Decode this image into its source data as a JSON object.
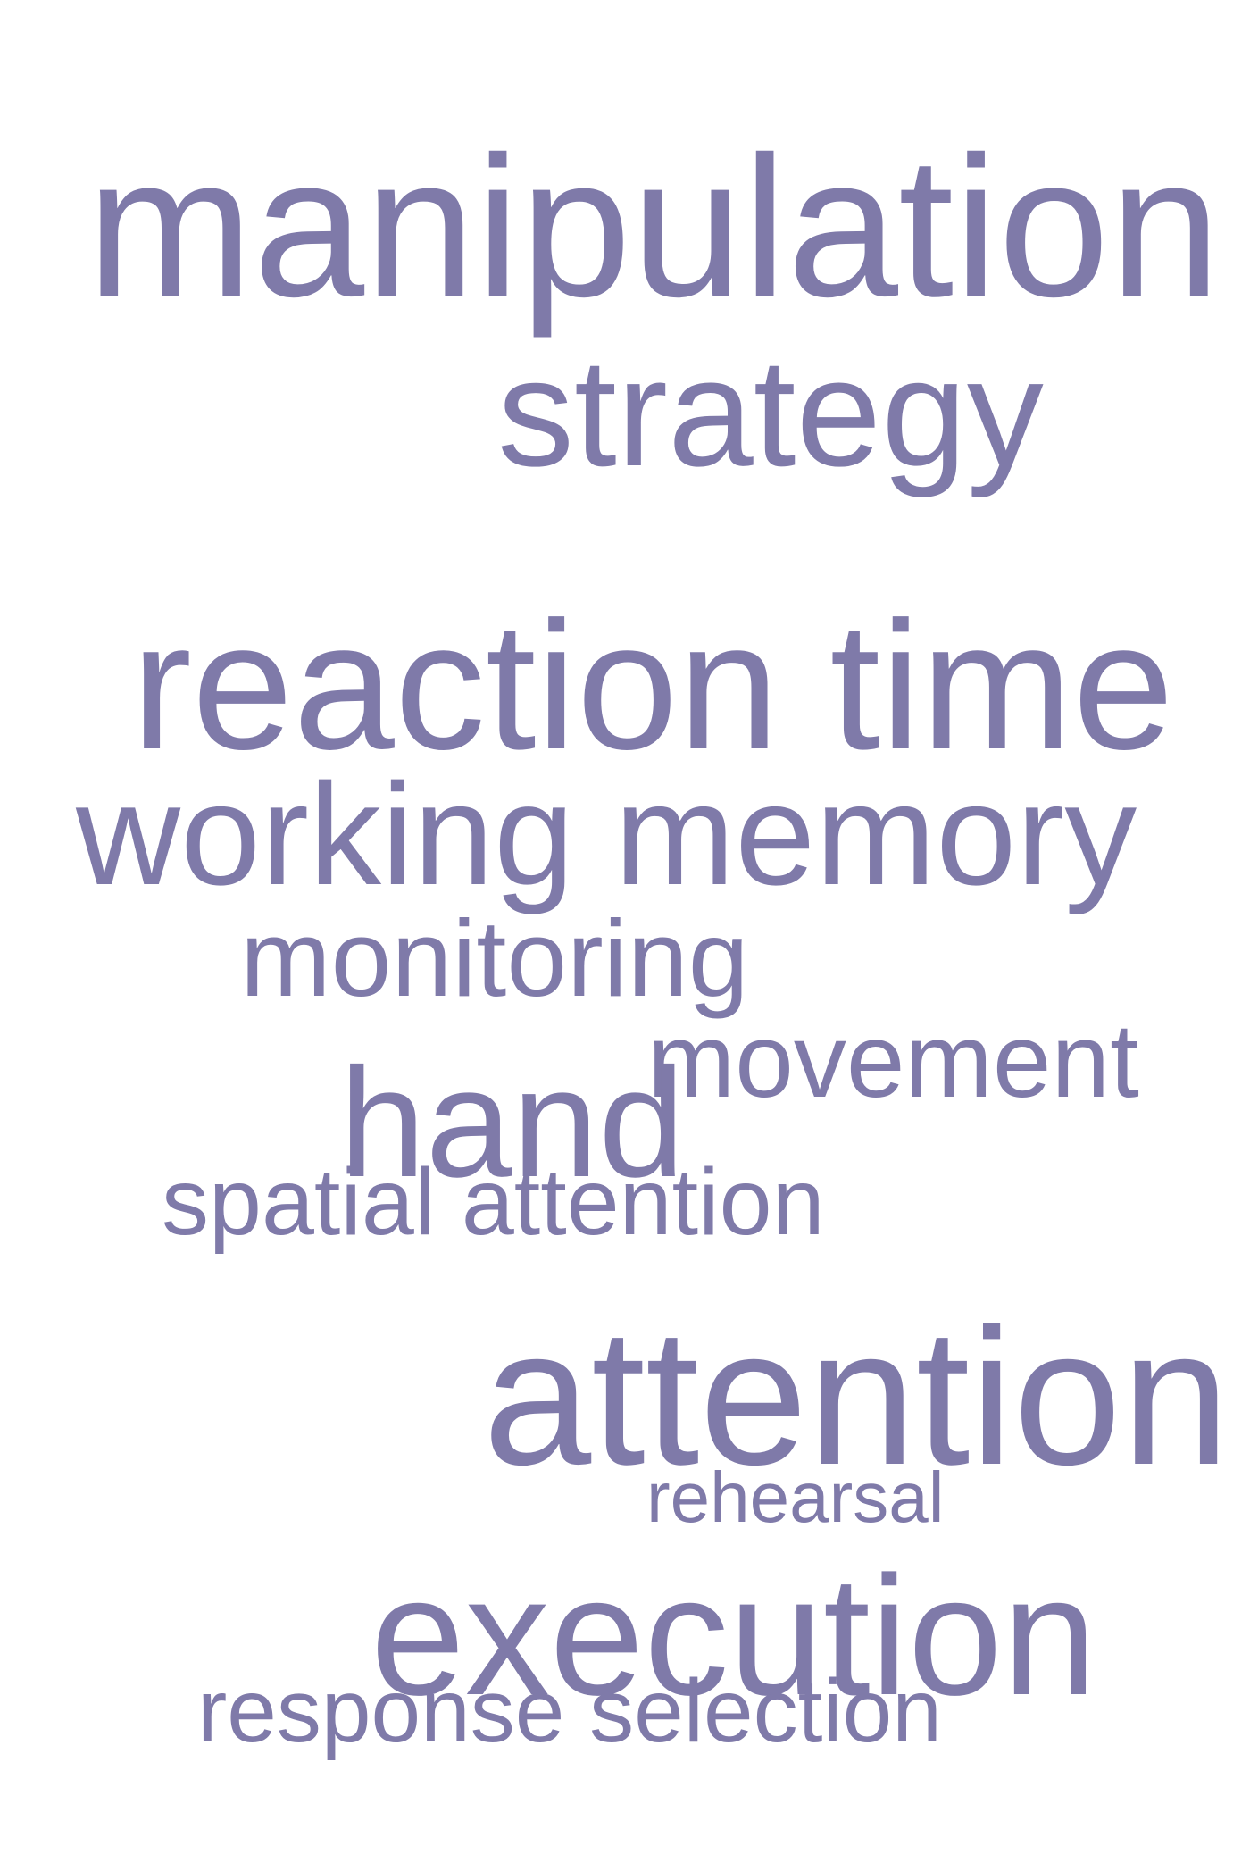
{
  "colors": {
    "background": "#ffffff",
    "word": "#7f7aa9"
  },
  "words": {
    "manipulation": "manipulation",
    "strategy": "strategy",
    "reaction_time": "reaction time",
    "working_memory": "working memory",
    "monitoring": "monitoring",
    "movement": "movement",
    "hand": "hand",
    "spatial_attention": "spatial attention",
    "attention": "attention",
    "rehearsal": "rehearsal",
    "execution": "execution",
    "response_selection": "response selection"
  }
}
